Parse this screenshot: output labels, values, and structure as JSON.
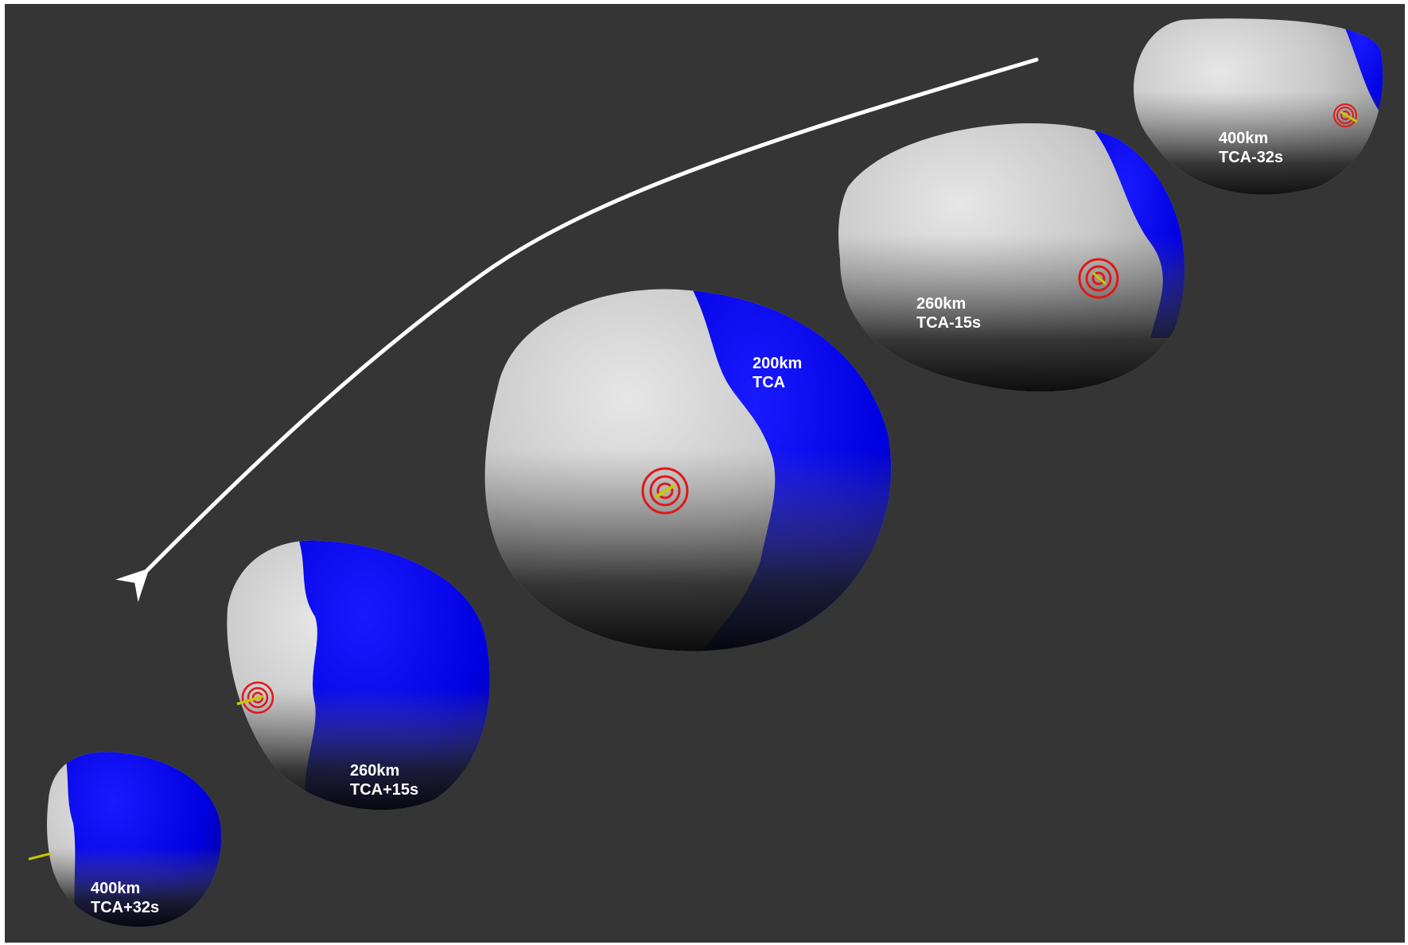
{
  "colors": {
    "background": "#353535",
    "shadowed_face": "#0000ff",
    "illuminated_face": "#d8d8d8",
    "target_rings": "#e01818",
    "trajectory_arrow": "#ffffff"
  },
  "views": [
    {
      "distance": "400km",
      "time": "TCA-32s"
    },
    {
      "distance": "260km",
      "time": "TCA-15s"
    },
    {
      "distance": "200km",
      "time": "TCA"
    },
    {
      "distance": "260km",
      "time": "TCA+15s"
    },
    {
      "distance": "400km",
      "time": "TCA+32s"
    }
  ]
}
